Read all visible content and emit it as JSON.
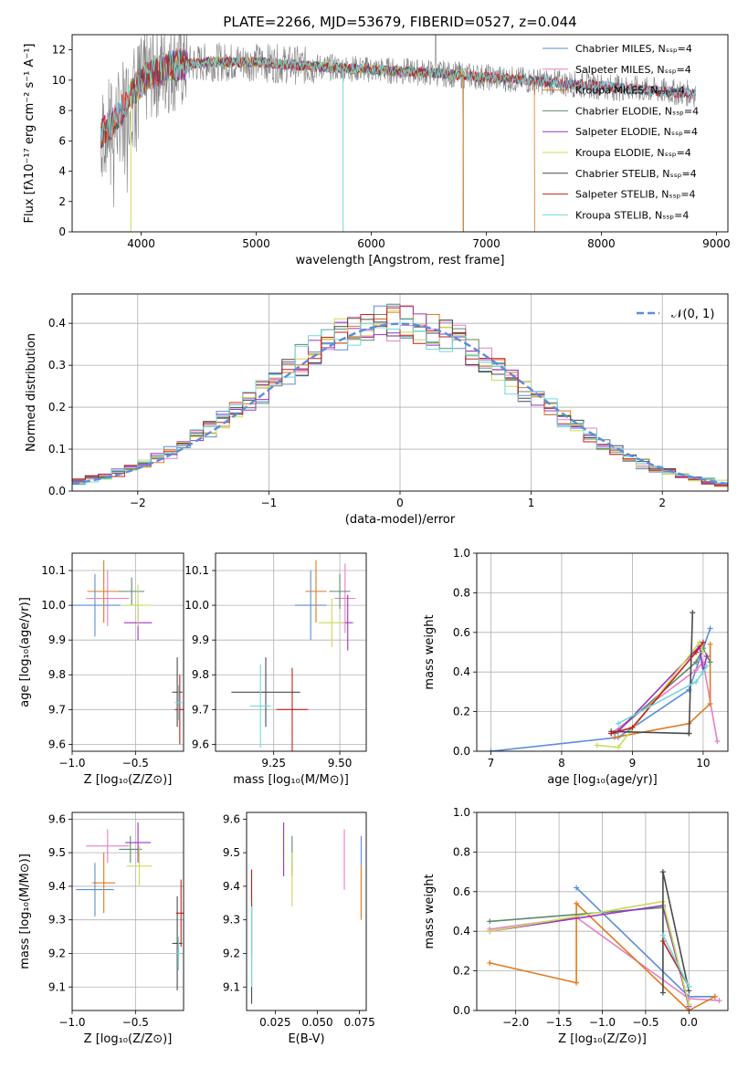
{
  "title": "PLATE=2266, MJD=53679, FIBERID=0527, z=0.044",
  "colors": {
    "Chabrier MILES": "#5b8dd9",
    "Salpeter MILES": "#e77fc2",
    "Kroupa MILES": "#e07a20",
    "Chabrier ELODIE": "#5f8a6b",
    "Salpeter ELODIE": "#9b33c4",
    "Kroupa ELODIE": "#c8dc5a",
    "Chabrier STELIB": "#4a4a4a",
    "Salpeter STELIB": "#c41e1e",
    "Kroupa STELIB": "#6fd9d9",
    "data": "#808080",
    "normal": "#5b8dd9"
  },
  "chart_data": [
    {
      "id": "spectrum",
      "type": "line",
      "xlabel": "wavelength [Angstrom, rest frame]",
      "ylabel": "Flux [fλ10⁻¹⁷ erg cm⁻² s⁻¹ A⁻¹]",
      "xlim": [
        3400,
        9100
      ],
      "ylim": [
        0,
        13
      ],
      "xticks": [
        "4000",
        "5000",
        "6000",
        "7000",
        "8000",
        "9000"
      ],
      "yticks": [
        "0",
        "2",
        "4",
        "6",
        "8",
        "10",
        "12"
      ],
      "legend_position": "upper-right",
      "legend": [
        "Chabrier MILES, Nₛₛₚ=4",
        "Salpeter MILES, Nₛₛₚ=4",
        "Kroupa MILES, Nₛₛₚ=4",
        "Chabrier ELODIE, Nₛₛₚ=4",
        "Salpeter ELODIE, Nₛₛₚ=4",
        "Kroupa ELODIE, Nₛₛₚ=4",
        "Chabrier STELIB, Nₛₛₚ=4",
        "Salpeter STELIB, Nₛₛₚ=4",
        "Kroupa STELIB, Nₛₛₚ=4"
      ],
      "continuum": [
        [
          3650,
          6.5
        ],
        [
          3800,
          7.5
        ],
        [
          3950,
          9.5
        ],
        [
          4100,
          10.5
        ],
        [
          4300,
          11.0
        ],
        [
          4600,
          11.2
        ],
        [
          5000,
          11.2
        ],
        [
          5500,
          10.9
        ],
        [
          6000,
          10.7
        ],
        [
          6500,
          10.5
        ],
        [
          7000,
          10.2
        ],
        [
          7500,
          9.9
        ],
        [
          8000,
          9.6
        ],
        [
          8500,
          9.3
        ],
        [
          8800,
          9.1
        ]
      ],
      "model_ranges": [
        {
          "series": "Chabrier MILES",
          "x": [
            3650,
            8820
          ]
        },
        {
          "series": "Salpeter MILES",
          "x": [
            3650,
            8820
          ]
        },
        {
          "series": "Kroupa MILES",
          "x": [
            3650,
            7420
          ]
        },
        {
          "series": "Chabrier ELODIE",
          "x": [
            3900,
            6800
          ]
        },
        {
          "series": "Salpeter ELODIE",
          "x": [
            3900,
            6800
          ]
        },
        {
          "series": "Kroupa ELODIE",
          "x": [
            3900,
            6800
          ]
        },
        {
          "series": "Chabrier STELIB",
          "x": [
            3650,
            8820
          ]
        },
        {
          "series": "Salpeter STELIB",
          "x": [
            3650,
            8820
          ]
        },
        {
          "series": "Kroupa STELIB",
          "x": [
            3650,
            8820
          ]
        }
      ]
    },
    {
      "id": "residuals",
      "type": "histogram",
      "xlabel": "(data-model)/error",
      "ylabel": "Normed distribution",
      "xlim": [
        -2.5,
        2.5
      ],
      "ylim": [
        0,
        0.47
      ],
      "xticks": [
        "−2",
        "−1",
        "0",
        "1",
        "2"
      ],
      "yticks": [
        "0.0",
        "0.1",
        "0.2",
        "0.3",
        "0.4"
      ],
      "grid": true,
      "legend_position": "upper-right",
      "normal_label": "𝒩(0, 1)",
      "bin_width": 0.1
    },
    {
      "id": "age-vs-Z",
      "type": "scatter",
      "xlabel": "Z [log₁₀(Z/Z⊙)]",
      "ylabel": "age  [log₁₀(age/yr)]",
      "xlim": [
        -1.0,
        -0.12
      ],
      "ylim": [
        9.58,
        10.15
      ],
      "xticks": [
        "−1.0",
        "−0.5"
      ],
      "yticks": [
        "9.6",
        "9.7",
        "9.8",
        "9.9",
        "10.0",
        "10.1"
      ],
      "grid": true,
      "points": [
        {
          "series": "Chabrier MILES",
          "x": -0.82,
          "y": 10.0,
          "xerr": 0.2,
          "yerr": 0.09
        },
        {
          "series": "Salpeter MILES",
          "x": -0.72,
          "y": 10.02,
          "xerr": 0.17,
          "yerr": 0.08
        },
        {
          "series": "Kroupa MILES",
          "x": -0.75,
          "y": 10.04,
          "xerr": 0.13,
          "yerr": 0.09
        },
        {
          "series": "Chabrier ELODIE",
          "x": -0.53,
          "y": 10.04,
          "xerr": 0.1,
          "yerr": 0.04
        },
        {
          "series": "Salpeter ELODIE",
          "x": -0.48,
          "y": 9.95,
          "xerr": 0.11,
          "yerr": 0.05
        },
        {
          "series": "Kroupa ELODIE",
          "x": -0.48,
          "y": 10.0,
          "xerr": 0.1,
          "yerr": 0.06
        },
        {
          "series": "Chabrier STELIB",
          "x": -0.17,
          "y": 9.75,
          "xerr": 0.04,
          "yerr": 0.1
        },
        {
          "series": "Salpeter STELIB",
          "x": -0.15,
          "y": 9.7,
          "xerr": 0.04,
          "yerr": 0.1
        },
        {
          "series": "Kroupa STELIB",
          "x": -0.16,
          "y": 9.72,
          "xerr": 0.03,
          "yerr": 0.05
        }
      ]
    },
    {
      "id": "age-vs-mass",
      "type": "scatter",
      "xlabel": "mass [log₁₀(M/M⊙)]",
      "ylabel": "",
      "xlim": [
        9.03,
        9.6
      ],
      "ylim": [
        9.58,
        10.15
      ],
      "xticks": [
        "9.25",
        "9.50"
      ],
      "yticks": [
        "9.6",
        "9.7",
        "9.8",
        "9.9",
        "10.0",
        "10.1"
      ],
      "grid": true,
      "points": [
        {
          "series": "Chabrier MILES",
          "x": 9.39,
          "y": 10.0,
          "xerr": 0.06,
          "yerr": 0.1
        },
        {
          "series": "Salpeter MILES",
          "x": 9.52,
          "y": 10.02,
          "xerr": 0.04,
          "yerr": 0.1
        },
        {
          "series": "Kroupa MILES",
          "x": 9.41,
          "y": 10.04,
          "xerr": 0.04,
          "yerr": 0.09
        },
        {
          "series": "Chabrier ELODIE",
          "x": 9.5,
          "y": 10.04,
          "xerr": 0.04,
          "yerr": 0.05
        },
        {
          "series": "Salpeter ELODIE",
          "x": 9.53,
          "y": 9.95,
          "xerr": 0.02,
          "yerr": 0.08
        },
        {
          "series": "Kroupa ELODIE",
          "x": 9.47,
          "y": 9.95,
          "xerr": 0.05,
          "yerr": 0.07
        },
        {
          "series": "Chabrier STELIB",
          "x": 9.22,
          "y": 9.75,
          "xerr": 0.13,
          "yerr": 0.1
        },
        {
          "series": "Salpeter STELIB",
          "x": 9.32,
          "y": 9.7,
          "xerr": 0.06,
          "yerr": 0.12
        },
        {
          "series": "Kroupa STELIB",
          "x": 9.2,
          "y": 9.71,
          "xerr": 0.04,
          "yerr": 0.12
        }
      ]
    },
    {
      "id": "weight-vs-age",
      "type": "line",
      "xlabel": "age  [log₁₀(age/yr)]",
      "ylabel": "mass weight",
      "xlim": [
        6.8,
        10.35
      ],
      "ylim": [
        0,
        1.0
      ],
      "xticks": [
        "7",
        "8",
        "9",
        "10"
      ],
      "yticks": [
        "0.0",
        "0.2",
        "0.4",
        "0.6",
        "0.8",
        "1.0"
      ],
      "grid": true,
      "series": [
        {
          "name": "Chabrier MILES",
          "x": [
            7.0,
            8.8,
            9.8,
            10.1
          ],
          "y": [
            0.0,
            0.07,
            0.31,
            0.62
          ]
        },
        {
          "name": "Salpeter MILES",
          "x": [
            8.7,
            9.9,
            10.0,
            10.2
          ],
          "y": [
            0.09,
            0.41,
            0.45,
            0.05
          ]
        },
        {
          "name": "Kroupa MILES",
          "x": [
            8.75,
            9.8,
            10.1,
            10.1
          ],
          "y": [
            0.07,
            0.14,
            0.24,
            0.54
          ]
        },
        {
          "name": "Chabrier ELODIE",
          "x": [
            8.75,
            9.9,
            10.0,
            10.1
          ],
          "y": [
            0.09,
            0.45,
            0.52,
            0.45
          ]
        },
        {
          "name": "Salpeter ELODIE",
          "x": [
            8.8,
            9.95,
            10.0,
            10.05
          ],
          "y": [
            0.1,
            0.53,
            0.4,
            0.48
          ]
        },
        {
          "name": "Kroupa ELODIE",
          "x": [
            8.5,
            8.8,
            9.95,
            10.0
          ],
          "y": [
            0.03,
            0.02,
            0.55,
            0.5
          ]
        },
        {
          "name": "Chabrier STELIB",
          "x": [
            8.7,
            9.8,
            9.85,
            9.8
          ],
          "y": [
            0.1,
            0.09,
            0.7,
            0.09
          ]
        },
        {
          "name": "Salpeter STELIB",
          "x": [
            8.7,
            9.0,
            9.9,
            10.0
          ],
          "y": [
            0.09,
            0.12,
            0.5,
            0.55
          ]
        },
        {
          "name": "Kroupa STELIB",
          "x": [
            8.8,
            9.9,
            10.0,
            10.05
          ],
          "y": [
            0.14,
            0.35,
            0.4,
            0.43
          ]
        }
      ]
    },
    {
      "id": "mass-vs-Z",
      "type": "scatter",
      "xlabel": "Z [log₁₀(Z/Z⊙)]",
      "ylabel": "mass [log₁₀(M/M⊙)]",
      "xlim": [
        -1.0,
        -0.12
      ],
      "ylim": [
        9.03,
        9.62
      ],
      "xticks": [
        "−1.0",
        "−0.5"
      ],
      "yticks": [
        "9.1",
        "9.2",
        "9.3",
        "9.4",
        "9.5",
        "9.6"
      ],
      "grid": true,
      "points": [
        {
          "series": "Chabrier MILES",
          "x": -0.82,
          "y": 9.39,
          "xerr": 0.15,
          "yerr": 0.08
        },
        {
          "series": "Salpeter MILES",
          "x": -0.72,
          "y": 9.52,
          "xerr": 0.17,
          "yerr": 0.05
        },
        {
          "series": "Kroupa MILES",
          "x": -0.75,
          "y": 9.41,
          "xerr": 0.09,
          "yerr": 0.09
        },
        {
          "series": "Chabrier ELODIE",
          "x": -0.54,
          "y": 9.51,
          "xerr": 0.09,
          "yerr": 0.04
        },
        {
          "series": "Salpeter ELODIE",
          "x": -0.48,
          "y": 9.53,
          "xerr": 0.1,
          "yerr": 0.06
        },
        {
          "series": "Kroupa ELODIE",
          "x": -0.47,
          "y": 9.46,
          "xerr": 0.1,
          "yerr": 0.06
        },
        {
          "series": "Chabrier STELIB",
          "x": -0.17,
          "y": 9.23,
          "xerr": 0.04,
          "yerr": 0.14
        },
        {
          "series": "Salpeter STELIB",
          "x": -0.14,
          "y": 9.32,
          "xerr": 0.04,
          "yerr": 0.1
        },
        {
          "series": "Kroupa STELIB",
          "x": -0.16,
          "y": 9.2,
          "xerr": 0.03,
          "yerr": 0.05
        }
      ]
    },
    {
      "id": "mass-vs-ebv",
      "type": "scatter",
      "xlabel": "E(B-V)",
      "ylabel": "",
      "xlim": [
        0.008,
        0.079
      ],
      "ylim": [
        9.03,
        9.62
      ],
      "xticks": [
        "0.025",
        "0.050",
        "0.075"
      ],
      "yticks": [
        "9.1",
        "9.2",
        "9.3",
        "9.4",
        "9.5",
        "9.6"
      ],
      "grid": false,
      "points": [
        {
          "series": "Chabrier MILES",
          "x": 0.076,
          "y": 9.43,
          "yerr": 0.12
        },
        {
          "series": "Salpeter MILES",
          "x": 0.066,
          "y": 9.48,
          "yerr": 0.09
        },
        {
          "series": "Kroupa MILES",
          "x": 0.076,
          "y": 9.38,
          "yerr": 0.08
        },
        {
          "series": "Chabrier ELODIE",
          "x": 0.035,
          "y": 9.49,
          "yerr": 0.06
        },
        {
          "series": "Salpeter ELODIE",
          "x": 0.03,
          "y": 9.51,
          "yerr": 0.08
        },
        {
          "series": "Kroupa ELODIE",
          "x": 0.035,
          "y": 9.42,
          "yerr": 0.08
        },
        {
          "series": "Chabrier STELIB",
          "x": 0.011,
          "y": 9.2,
          "yerr": 0.15
        },
        {
          "series": "Salpeter STELIB",
          "x": 0.011,
          "y": 9.32,
          "yerr": 0.13
        },
        {
          "series": "Kroupa STELIB",
          "x": 0.011,
          "y": 9.22,
          "yerr": 0.12
        }
      ]
    },
    {
      "id": "weight-vs-Z",
      "type": "line",
      "xlabel": "Z [log₁₀(Z/Z⊙)]",
      "ylabel": "mass weight",
      "xlim": [
        -2.45,
        0.45
      ],
      "ylim": [
        0,
        1.0
      ],
      "xticks": [
        "−2.0",
        "−1.5",
        "−1.0",
        "−0.5",
        "0.0"
      ],
      "yticks": [
        "0.0",
        "0.2",
        "0.4",
        "0.6",
        "0.8",
        "1.0"
      ],
      "grid": true,
      "series": [
        {
          "name": "Chabrier MILES",
          "x": [
            -1.3,
            0.0,
            0.3
          ],
          "y": [
            0.62,
            0.07,
            0.07
          ]
        },
        {
          "name": "Salpeter MILES",
          "x": [
            -2.3,
            -1.3,
            0.0,
            0.35
          ],
          "y": [
            0.41,
            0.47,
            0.06,
            0.05
          ]
        },
        {
          "name": "Kroupa MILES",
          "x": [
            -2.3,
            -1.3,
            -1.3,
            0.0,
            0.3
          ],
          "y": [
            0.24,
            0.14,
            0.54,
            0.0,
            0.07
          ]
        },
        {
          "name": "Chabrier ELODIE",
          "x": [
            -2.3,
            -0.3,
            0.0
          ],
          "y": [
            0.45,
            0.52,
            0.03
          ]
        },
        {
          "name": "Salpeter ELODIE",
          "x": [
            -2.3,
            -0.3,
            0.0
          ],
          "y": [
            0.4,
            0.53,
            0.02
          ]
        },
        {
          "name": "Kroupa ELODIE",
          "x": [
            -2.3,
            -0.3,
            0.0
          ],
          "y": [
            0.4,
            0.55,
            0.03
          ]
        },
        {
          "name": "Chabrier STELIB",
          "x": [
            -0.3,
            -0.3,
            0.0
          ],
          "y": [
            0.09,
            0.7,
            0.1
          ]
        },
        {
          "name": "Salpeter STELIB",
          "x": [
            -0.3,
            0.0
          ],
          "y": [
            0.35,
            0.12
          ]
        },
        {
          "name": "Kroupa STELIB",
          "x": [
            -0.3,
            0.0
          ],
          "y": [
            0.38,
            0.12
          ]
        }
      ]
    }
  ]
}
